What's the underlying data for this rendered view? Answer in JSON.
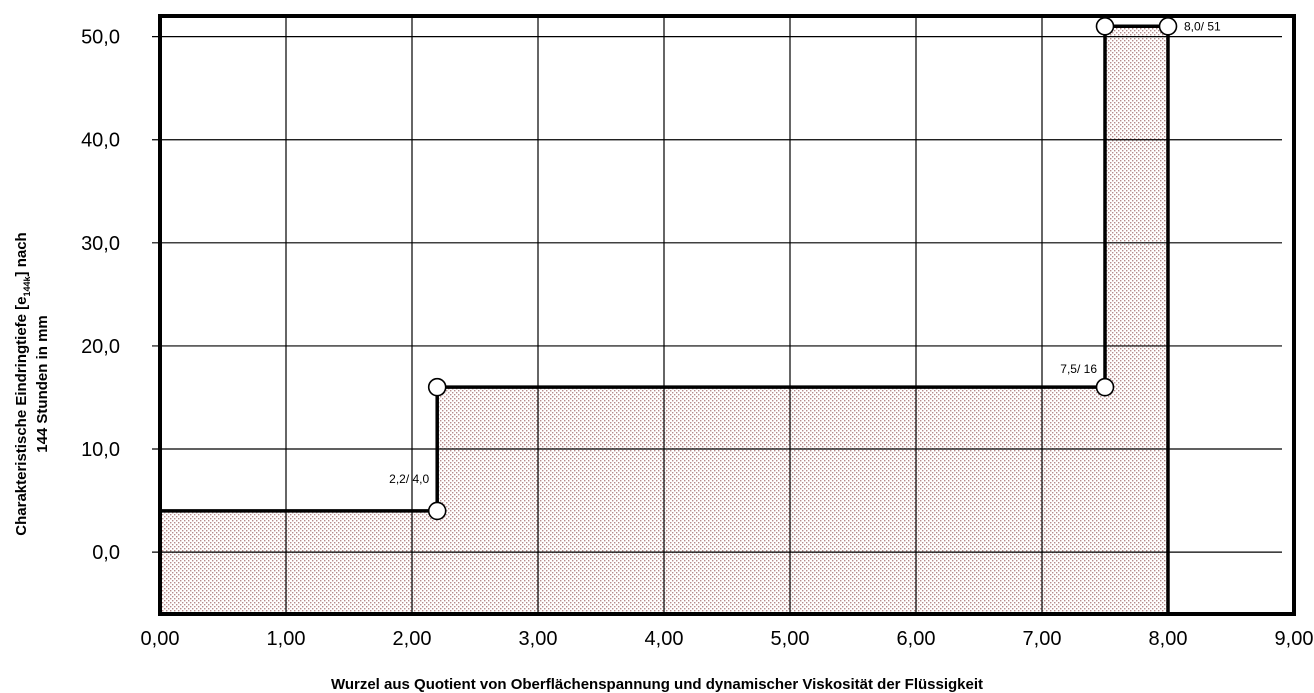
{
  "chart_data": {
    "type": "area",
    "xlabel": "Wurzel aus Quotient von Oberflächenspannung und dynamischer Viskosität der Flüssigkeit",
    "ylabel": [
      "Charakteristische Eindringtiefe  [e",
      "144k",
      "]  nach",
      "144 Stunden in mm"
    ],
    "xlim": [
      0,
      9
    ],
    "ylim": [
      -6,
      52
    ],
    "x_ticks": [
      0,
      1,
      2,
      3,
      4,
      5,
      6,
      7,
      8,
      9
    ],
    "x_tick_labels": [
      "0,00",
      "1,00",
      "2,00",
      "3,00",
      "4,00",
      "5,00",
      "6,00",
      "7,00",
      "8,00",
      "9,00"
    ],
    "y_ticks": [
      0,
      10,
      20,
      30,
      40,
      50
    ],
    "y_tick_labels": [
      "0,0",
      "10,0",
      "20,0",
      "30,0",
      "40,0",
      "50,0"
    ],
    "grid": true,
    "step_boundary": [
      [
        0,
        4.0
      ],
      [
        2.2,
        4.0
      ],
      [
        2.2,
        16
      ],
      [
        7.5,
        16
      ],
      [
        7.5,
        51
      ],
      [
        8.0,
        51
      ],
      [
        8.0,
        -6
      ]
    ],
    "points": [
      {
        "x": 2.2,
        "y": 4.0,
        "label": "2,2/ 4,0"
      },
      {
        "x": 2.2,
        "y": 16
      },
      {
        "x": 7.5,
        "y": 16,
        "label": "7,5/ 16"
      },
      {
        "x": 7.5,
        "y": 51
      },
      {
        "x": 8.0,
        "y": 51,
        "label": "8,0/ 51"
      }
    ],
    "fill_color": "#c49a9a",
    "line_color": "#000000"
  }
}
